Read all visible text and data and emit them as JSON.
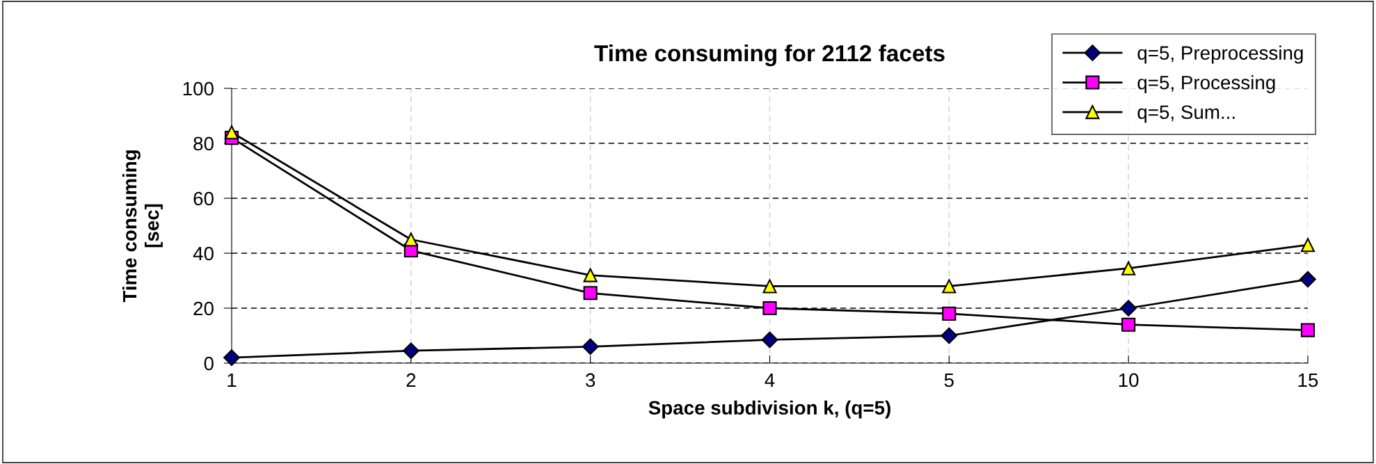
{
  "chart_data": {
    "type": "line",
    "title": "Time consuming for 2112 facets",
    "xlabel": "Space subdivision k, (q=5)",
    "ylabel": "Time consuming\n[sec]",
    "categories": [
      "1",
      "2",
      "3",
      "4",
      "5",
      "10",
      "15"
    ],
    "series": [
      {
        "name": "q=5, Preprocessing",
        "color": "#000080",
        "marker": "diamond",
        "values": [
          2,
          4.5,
          6,
          8.5,
          10,
          20,
          30.5
        ]
      },
      {
        "name": "q=5, Processing",
        "color": "#ff00ff",
        "marker": "square",
        "values": [
          82,
          41,
          25.5,
          20,
          18,
          14,
          12
        ]
      },
      {
        "name": "q=5, Sum...",
        "color": "#ffff00",
        "marker": "triangle",
        "values": [
          84,
          45,
          32,
          28,
          28,
          34.5,
          43
        ]
      }
    ],
    "ylim": [
      0,
      100
    ],
    "yticks": [
      0,
      20,
      40,
      60,
      80,
      100
    ],
    "grid": true,
    "legend": "top right",
    "line_style": "solid"
  }
}
